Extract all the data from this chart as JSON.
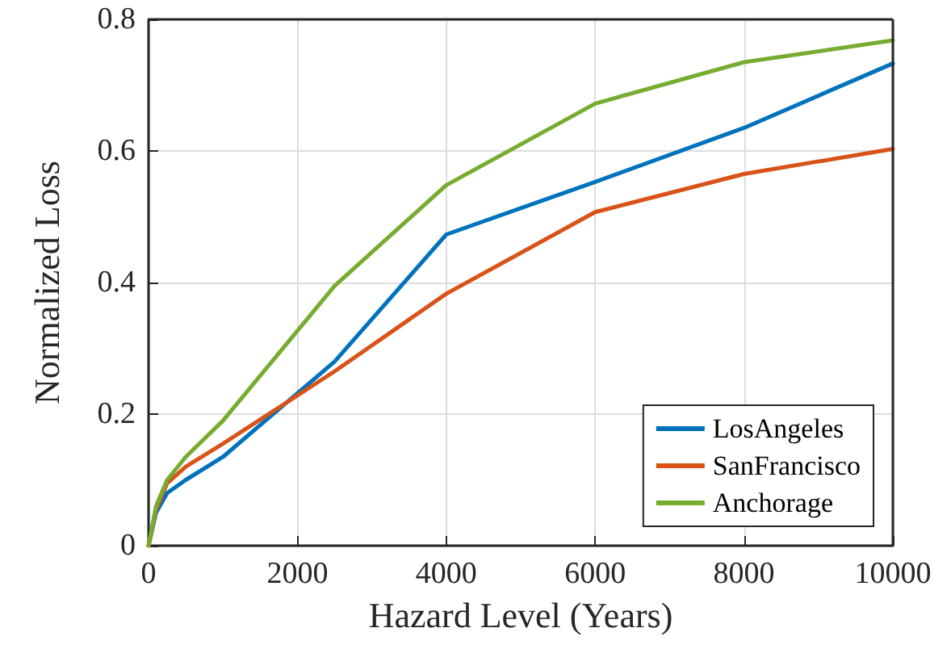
{
  "chart_data": {
    "type": "line",
    "xlabel": "Hazard Level (Years)",
    "ylabel": "Normalized Loss",
    "x": [
      0,
      100,
      250,
      500,
      1000,
      2500,
      4000,
      6000,
      8000,
      10000
    ],
    "series": [
      {
        "name": "LosAngeles",
        "color": "#0072bd",
        "values": [
          0,
          0.05,
          0.08,
          0.1,
          0.135,
          0.28,
          0.473,
          0.553,
          0.635,
          0.733
        ]
      },
      {
        "name": "SanFrancisco",
        "color": "#d95319",
        "values": [
          0,
          0.055,
          0.095,
          0.12,
          0.155,
          0.265,
          0.383,
          0.507,
          0.565,
          0.603
        ]
      },
      {
        "name": "Anchorage",
        "color": "#77ac30",
        "values": [
          0,
          0.06,
          0.1,
          0.135,
          0.19,
          0.395,
          0.548,
          0.672,
          0.735,
          0.768
        ]
      }
    ],
    "xlim": [
      0,
      10000
    ],
    "xticks": [
      0,
      2000,
      4000,
      6000,
      8000,
      10000
    ],
    "ylim": [
      0,
      0.8
    ],
    "yticks": [
      0,
      0.2,
      0.4,
      0.6,
      0.8
    ],
    "grid": true,
    "legend": "bottom right",
    "marker": "none",
    "line_style": "solid"
  }
}
